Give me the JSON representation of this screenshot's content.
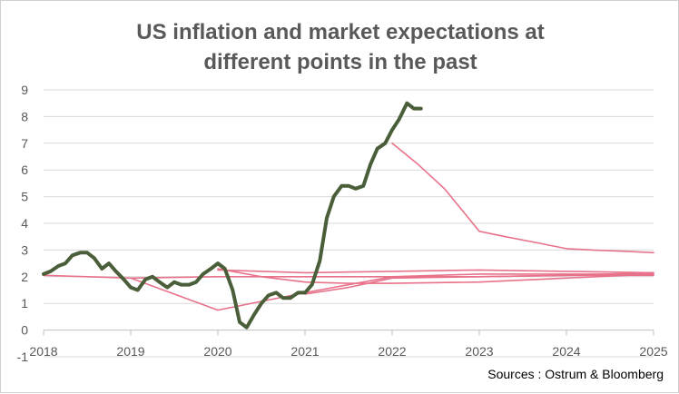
{
  "chart_data": {
    "type": "line",
    "title_line1": "US inflation and market expectations at",
    "title_line2": "different points in the past",
    "source": "Sources : Ostrum & Bloomberg",
    "ylim": [
      -1,
      9
    ],
    "yticks": [
      "-1",
      "0",
      "1",
      "2",
      "3",
      "4",
      "5",
      "6",
      "7",
      "8",
      "9"
    ],
    "xlim": [
      2018,
      2025
    ],
    "xticks": [
      "2018",
      "2019",
      "2020",
      "2021",
      "2022",
      "2023",
      "2024",
      "2025"
    ],
    "grid": true,
    "legend": "none",
    "colors": {
      "actual": "#4a5e3a",
      "expectations": "#e8728a",
      "grid": "#d9d9d9"
    },
    "series": [
      {
        "kind": "actual",
        "x": [
          2018.0,
          2018.08,
          2018.17,
          2018.25,
          2018.33,
          2018.42,
          2018.5,
          2018.58,
          2018.67,
          2018.75,
          2018.83,
          2018.92,
          2019.0,
          2019.08,
          2019.17,
          2019.25,
          2019.33,
          2019.42,
          2019.5,
          2019.58,
          2019.67,
          2019.75,
          2019.83,
          2019.92,
          2020.0,
          2020.08,
          2020.17,
          2020.25,
          2020.33,
          2020.42,
          2020.5,
          2020.58,
          2020.67,
          2020.75,
          2020.83,
          2020.92,
          2021.0,
          2021.08,
          2021.17,
          2021.25,
          2021.33,
          2021.42,
          2021.5,
          2021.58,
          2021.67,
          2021.75,
          2021.83,
          2021.92,
          2022.0,
          2022.08,
          2022.17,
          2022.25,
          2022.33
        ],
        "y": [
          2.1,
          2.2,
          2.4,
          2.5,
          2.8,
          2.9,
          2.9,
          2.7,
          2.3,
          2.5,
          2.2,
          1.9,
          1.6,
          1.5,
          1.9,
          2.0,
          1.8,
          1.6,
          1.8,
          1.7,
          1.7,
          1.8,
          2.1,
          2.3,
          2.5,
          2.3,
          1.5,
          0.3,
          0.1,
          0.6,
          1.0,
          1.3,
          1.4,
          1.2,
          1.2,
          1.4,
          1.4,
          1.7,
          2.6,
          4.2,
          5.0,
          5.4,
          5.4,
          5.3,
          5.4,
          6.2,
          6.8,
          7.0,
          7.5,
          7.9,
          8.5,
          8.3,
          8.3
        ]
      },
      {
        "kind": "expectation",
        "x": [
          2018.0,
          2018.5,
          2019.0,
          2020.0,
          2021.0,
          2022.0,
          2023.0,
          2024.0,
          2025.0
        ],
        "y": [
          2.05,
          2.0,
          1.95,
          2.0,
          2.0,
          2.0,
          2.0,
          2.05,
          2.05
        ]
      },
      {
        "kind": "expectation",
        "x": [
          2019.0,
          2020.0,
          2021.0,
          2022.0,
          2023.0,
          2024.0,
          2025.0
        ],
        "y": [
          1.95,
          0.75,
          1.4,
          2.0,
          2.1,
          2.1,
          2.1
        ]
      },
      {
        "kind": "expectation",
        "x": [
          2020.0,
          2020.5,
          2021.0,
          2021.5,
          2022.0,
          2023.0,
          2024.0,
          2025.0
        ],
        "y": [
          2.3,
          2.0,
          1.8,
          1.75,
          1.75,
          1.8,
          1.95,
          2.1
        ]
      },
      {
        "kind": "expectation",
        "x": [
          2020.0,
          2021.0,
          2022.0,
          2023.0,
          2024.0,
          2025.0
        ],
        "y": [
          2.25,
          2.15,
          2.2,
          2.25,
          2.2,
          2.15
        ]
      },
      {
        "kind": "expectation",
        "x": [
          2021.0,
          2021.5,
          2022.0,
          2023.0,
          2024.0,
          2025.0
        ],
        "y": [
          1.35,
          1.6,
          1.95,
          2.0,
          2.05,
          2.15
        ]
      },
      {
        "kind": "expectation",
        "x": [
          2022.0,
          2022.3,
          2022.6,
          2022.8,
          2023.0,
          2023.3,
          2023.7,
          2024.0,
          2024.3,
          2024.7,
          2025.0
        ],
        "y": [
          7.0,
          6.2,
          5.3,
          4.5,
          3.7,
          3.5,
          3.25,
          3.05,
          3.0,
          2.95,
          2.9
        ]
      }
    ]
  }
}
